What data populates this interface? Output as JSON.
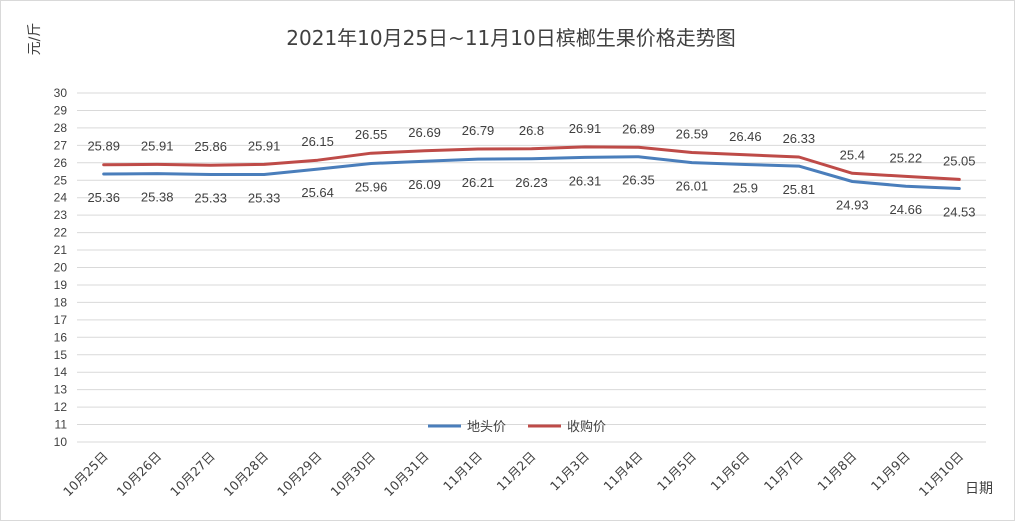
{
  "chart_data": {
    "type": "line",
    "title": "2021年10月25日~11月10日槟榔生果价格走势图",
    "ylabel": "元/斤",
    "xlabel": "日期",
    "ylim": [
      10,
      30
    ],
    "ytick_step": 1,
    "grid": true,
    "legend_position": "inside-bottom-center",
    "categories": [
      "10月25日",
      "10月26日",
      "10月27日",
      "10月28日",
      "10月29日",
      "10月30日",
      "10月31日",
      "11月1日",
      "11月2日",
      "11月3日",
      "11月4日",
      "11月5日",
      "11月6日",
      "11月7日",
      "11月8日",
      "11月9日",
      "11月10日"
    ],
    "series": [
      {
        "name": "地头价",
        "color": "#4a7ebb",
        "label_position": "below",
        "values": [
          25.36,
          25.38,
          25.33,
          25.33,
          25.64,
          25.96,
          26.09,
          26.21,
          26.23,
          26.31,
          26.35,
          26.01,
          25.9,
          25.81,
          24.93,
          24.66,
          24.53
        ]
      },
      {
        "name": "收购价",
        "color": "#be4b48",
        "label_position": "above",
        "values": [
          25.89,
          25.91,
          25.86,
          25.91,
          26.15,
          26.55,
          26.69,
          26.79,
          26.8,
          26.91,
          26.89,
          26.59,
          26.46,
          26.33,
          25.4,
          25.22,
          25.05
        ]
      }
    ]
  }
}
